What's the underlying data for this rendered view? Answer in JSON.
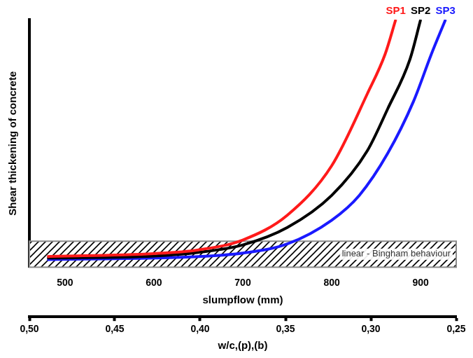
{
  "chart_data": {
    "type": "line",
    "xlabel": "slumpflow (mm)",
    "ylabel": "Shear thickening of concrete",
    "xlim": [
      460,
      940
    ],
    "xticks": [
      500,
      600,
      700,
      800,
      900
    ],
    "x2label": "w/c,(p),(b)",
    "x2lim": [
      0.5,
      0.25
    ],
    "x2ticks": [
      {
        "value": 0.5,
        "label": "0,50"
      },
      {
        "value": 0.45,
        "label": "0,45"
      },
      {
        "value": 0.4,
        "label": "0,40"
      },
      {
        "value": 0.35,
        "label": "0,35"
      },
      {
        "value": 0.3,
        "label": "0,30"
      },
      {
        "value": 0.25,
        "label": "0,25"
      }
    ],
    "ylim": [
      0,
      100
    ],
    "tick_labels": "x",
    "grid": false,
    "series": [
      {
        "name": "SP1",
        "color": "#ff1a1a",
        "x": [
          480,
          600,
          650,
          700,
          750,
          800,
          840,
          860,
          872
        ],
        "values": [
          4.3,
          5.5,
          7,
          11,
          21,
          41,
          70,
          86,
          100
        ]
      },
      {
        "name": "SP2",
        "color": "#000000",
        "x": [
          480,
          600,
          650,
          700,
          750,
          800,
          840,
          863,
          888,
          900
        ],
        "values": [
          3.7,
          4.5,
          6,
          9,
          16,
          29,
          47,
          64,
          84,
          100
        ]
      },
      {
        "name": "SP3",
        "color": "#1a1aff",
        "x": [
          480,
          600,
          650,
          700,
          750,
          800,
          831,
          863,
          892,
          912,
          928
        ],
        "values": [
          3.1,
          3.7,
          4.3,
          5.7,
          9.4,
          19,
          29,
          46,
          67,
          86,
          100
        ]
      }
    ],
    "band": {
      "label": "linear - Bingham behaviour",
      "x": [
        460,
        940
      ],
      "y": [
        0,
        10.5
      ]
    }
  }
}
